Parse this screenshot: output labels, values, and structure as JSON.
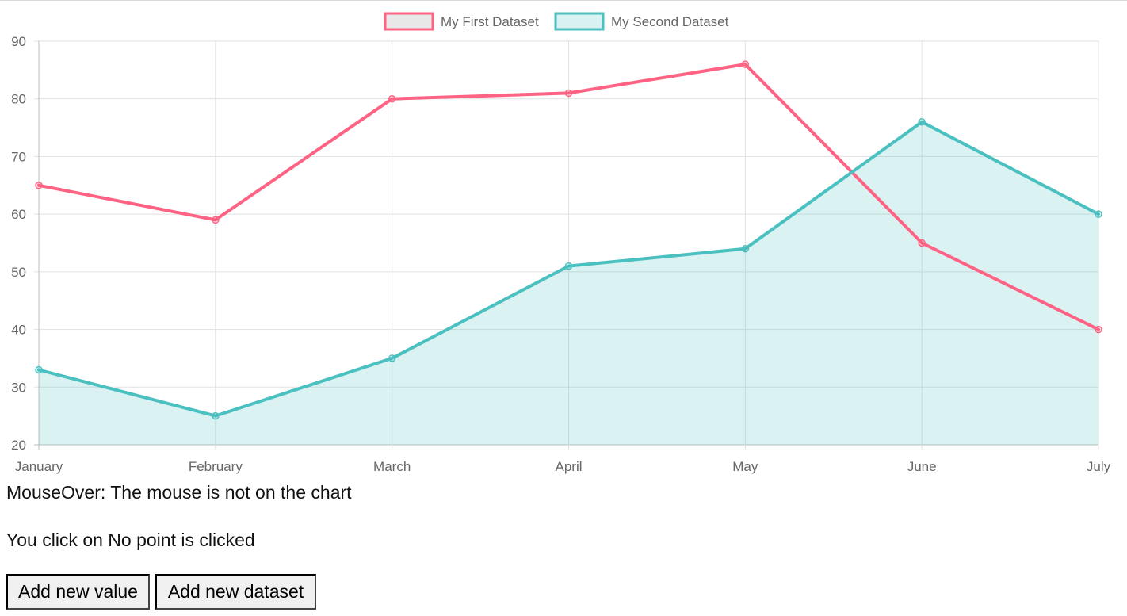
{
  "chart_data": {
    "type": "line",
    "categories": [
      "January",
      "February",
      "March",
      "April",
      "May",
      "June",
      "July"
    ],
    "ylim": [
      20,
      90
    ],
    "yticks": [
      20,
      30,
      40,
      50,
      60,
      70,
      80,
      90
    ],
    "grid": true,
    "legend": "top-center",
    "series": [
      {
        "name": "My First Dataset",
        "values": [
          65,
          59,
          80,
          81,
          86,
          55,
          40
        ],
        "color": "#ff6384",
        "fill": false,
        "legend_fill": "#e8e8e8"
      },
      {
        "name": "My Second Dataset",
        "values": [
          33,
          25,
          35,
          51,
          54,
          76,
          60
        ],
        "color": "#4bc0c0",
        "fill": true,
        "fill_color": "rgba(75,192,192,0.2)",
        "legend_fill": "#d9f1f1"
      }
    ]
  },
  "status": {
    "mouseover_label": "MouseOver: ",
    "mouseover_value": "The mouse is not on the chart",
    "click_label": "You click on ",
    "click_value": "No point is clicked"
  },
  "buttons": {
    "add_value": "Add new value",
    "add_dataset": "Add new dataset"
  }
}
